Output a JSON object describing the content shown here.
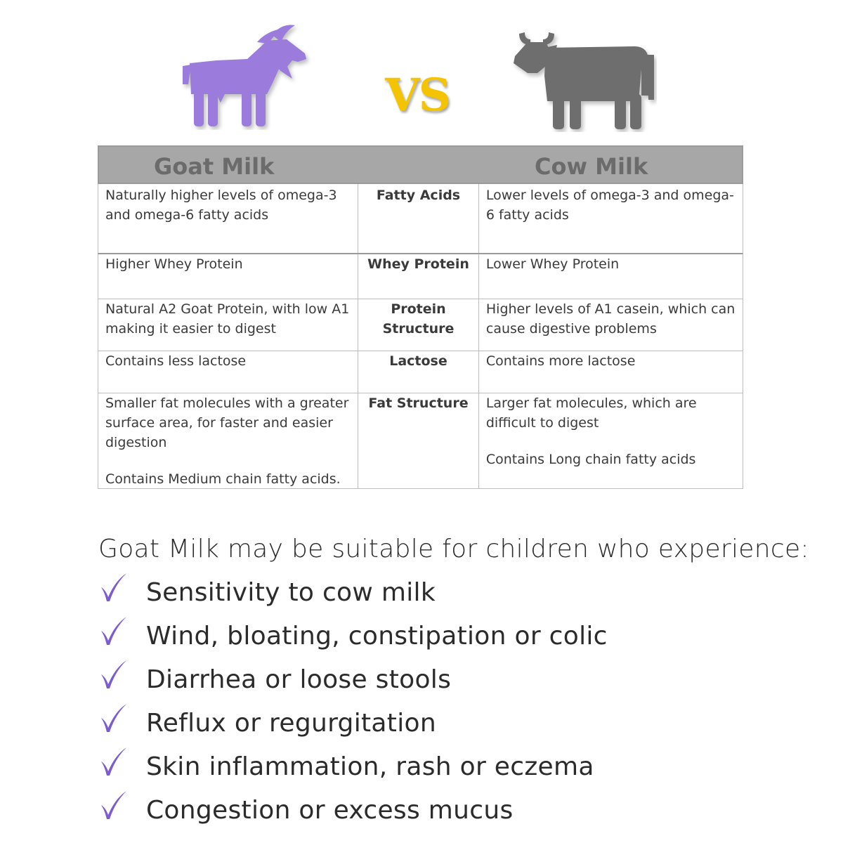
{
  "vs_label": "VS",
  "colors": {
    "goat": "#9b7bdb",
    "cow": "#6e6e6e",
    "vs": "#f5c400",
    "header": "#a7a7a7",
    "check": "#7c5ccf"
  },
  "icons": {
    "left": "goat-icon",
    "right": "cow-icon",
    "bullet": "checkmark-icon"
  },
  "table": {
    "goat_header": "Goat Milk",
    "cow_header": "Cow Milk",
    "rows": [
      {
        "goat": [
          "Naturally higher levels of omega-3 and omega-6 fatty acids"
        ],
        "attribute": "Fatty Acids",
        "cow": [
          "Lower levels of omega-3 and omega-6 fatty acids"
        ]
      },
      {
        "goat": [
          "Higher Whey Protein"
        ],
        "attribute": "Whey Protein",
        "cow": [
          "Lower Whey Protein"
        ]
      },
      {
        "goat": [
          "Natural A2 Goat Protein, with low A1 making it easier to digest"
        ],
        "attribute": "Protein Structure",
        "cow": [
          "Higher levels of A1 casein, which can cause digestive problems"
        ]
      },
      {
        "goat": [
          "Contains less lactose"
        ],
        "attribute": "Lactose",
        "cow": [
          "Contains more lactose"
        ]
      },
      {
        "goat": [
          "Smaller fat molecules with a greater surface area, for faster and easier digestion",
          "Contains Medium chain fatty acids."
        ],
        "attribute": "Fat Structure",
        "cow": [
          "Larger fat molecules, which are difficult to digest",
          "Contains Long chain fatty acids"
        ]
      }
    ]
  },
  "suitability": {
    "intro": "Goat Milk may be suitable for children who experience:",
    "items": [
      "Sensitivity to cow milk",
      "Wind, bloating, constipation or colic",
      "Diarrhea or loose stools",
      "Reflux or regurgitation",
      "Skin inflammation, rash or eczema",
      "Congestion or excess mucus"
    ]
  }
}
